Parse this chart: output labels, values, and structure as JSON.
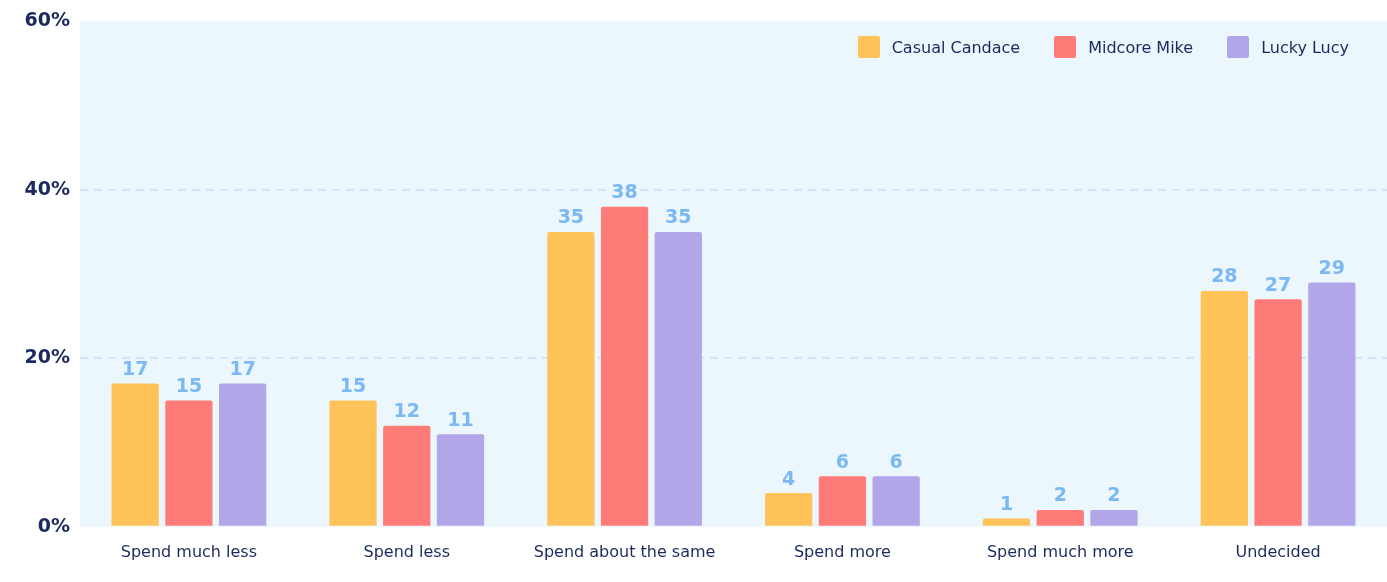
{
  "chart_data": {
    "type": "bar",
    "categories": [
      "Spend much less",
      "Spend less",
      "Spend about the same",
      "Spend more",
      "Spend much more",
      "Undecided"
    ],
    "series": [
      {
        "name": "Casual Candace",
        "color": "#ffc35a",
        "values": [
          17,
          15,
          35,
          4,
          1,
          28
        ]
      },
      {
        "name": "Midcore Mike",
        "color": "#ff7b77",
        "values": [
          15,
          12,
          38,
          6,
          2,
          27
        ]
      },
      {
        "name": "Lucky Lucy",
        "color": "#b3a6e8",
        "values": [
          17,
          11,
          35,
          6,
          2,
          29
        ]
      }
    ],
    "ylim": [
      0,
      60
    ],
    "yticks": [
      {
        "value": 0,
        "label": "0%"
      },
      {
        "value": 20,
        "label": "20%"
      },
      {
        "value": 40,
        "label": "40%"
      },
      {
        "value": 60,
        "label": "60%"
      }
    ],
    "grid": "y",
    "legend": "top right",
    "data_labels": true
  }
}
